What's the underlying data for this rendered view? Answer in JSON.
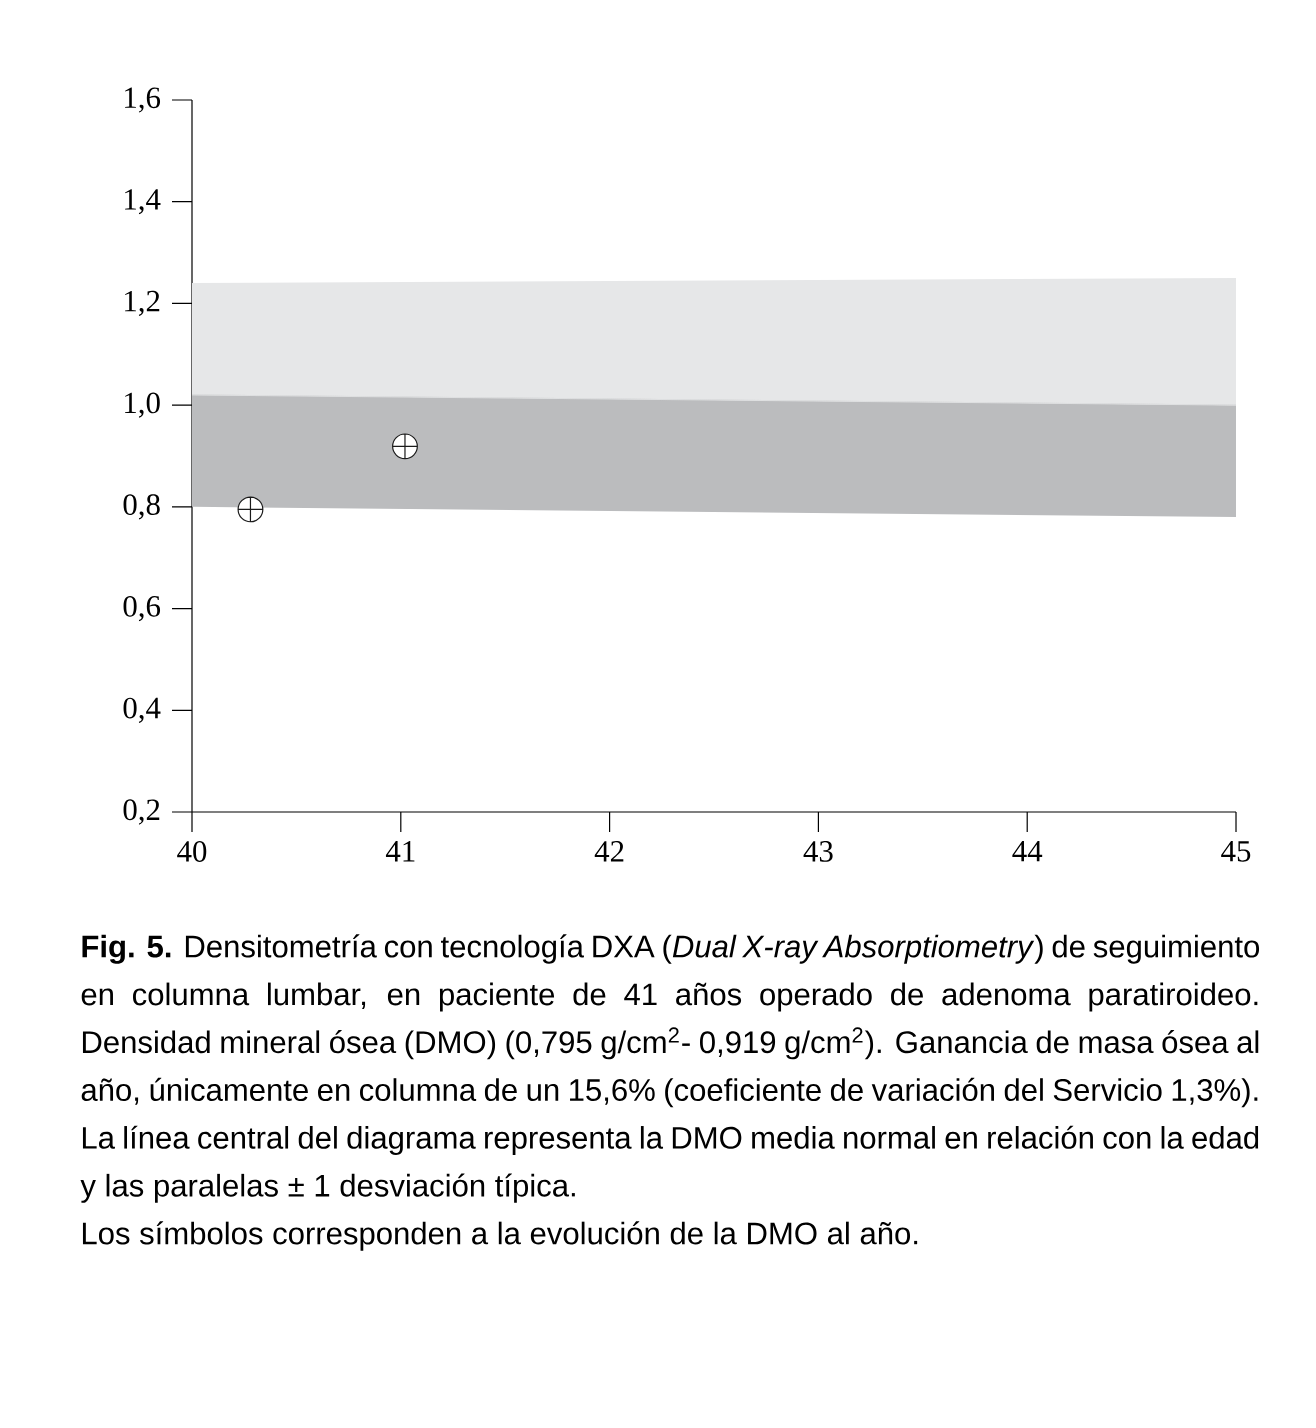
{
  "chart_data": {
    "type": "scatter",
    "xlim": [
      40,
      45
    ],
    "ylim": [
      0.2,
      1.6
    ],
    "xticks": [
      40,
      41,
      42,
      43,
      44,
      45
    ],
    "yticks": [
      {
        "value": 0.2,
        "label": "0,2"
      },
      {
        "value": 0.4,
        "label": "0,4"
      },
      {
        "value": 0.6,
        "label": "0,6"
      },
      {
        "value": 0.8,
        "label": "0,8"
      },
      {
        "value": 1.0,
        "label": "1,0"
      },
      {
        "value": 1.2,
        "label": "1,2"
      },
      {
        "value": 1.4,
        "label": "1,4"
      },
      {
        "value": 1.6,
        "label": "1,6"
      }
    ],
    "series": [
      {
        "type": "line",
        "color": "#bbbcbe",
        "x": [
          40,
          45
        ],
        "values": [
          1.02,
          1.0
        ],
        "lower": [
          0.8,
          0.78
        ],
        "upper": [
          1.02,
          1.0
        ]
      },
      {
        "type": "line",
        "color": "#e6e7e8",
        "x": [
          40,
          45
        ],
        "values": [
          1.02,
          1.0
        ],
        "lower": [
          1.02,
          1.0
        ],
        "upper": [
          1.24,
          1.25
        ]
      },
      {
        "color": "#1a1a1a",
        "x": [
          40.28,
          41.02
        ],
        "values": [
          0.795,
          0.919
        ],
        "marker": "cross"
      }
    ],
    "annotations": [
      "**Fig. 5.** Densitometría con tecnología DXA (*Dual X-ray Absorptiometry*) de seguimiento en columna lumbar, en paciente de 41 años operado de adenoma paratiroideo. Densidad mineral ósea (DMO) (0,795 g/cm$^{2}$- 0,919 g/cm$^{2}$). Ganancia de masa ósea al año, únicamente en columna de un 15,6% (coeficiente de variación del Servicio 1,3%). La línea central del diagrama representa la DMO media normal en relación con la edad y las paralelas ± 1 desviación típica.",
      "Los símbolos corresponden a la evolución de la DMO al año."
    ]
  }
}
